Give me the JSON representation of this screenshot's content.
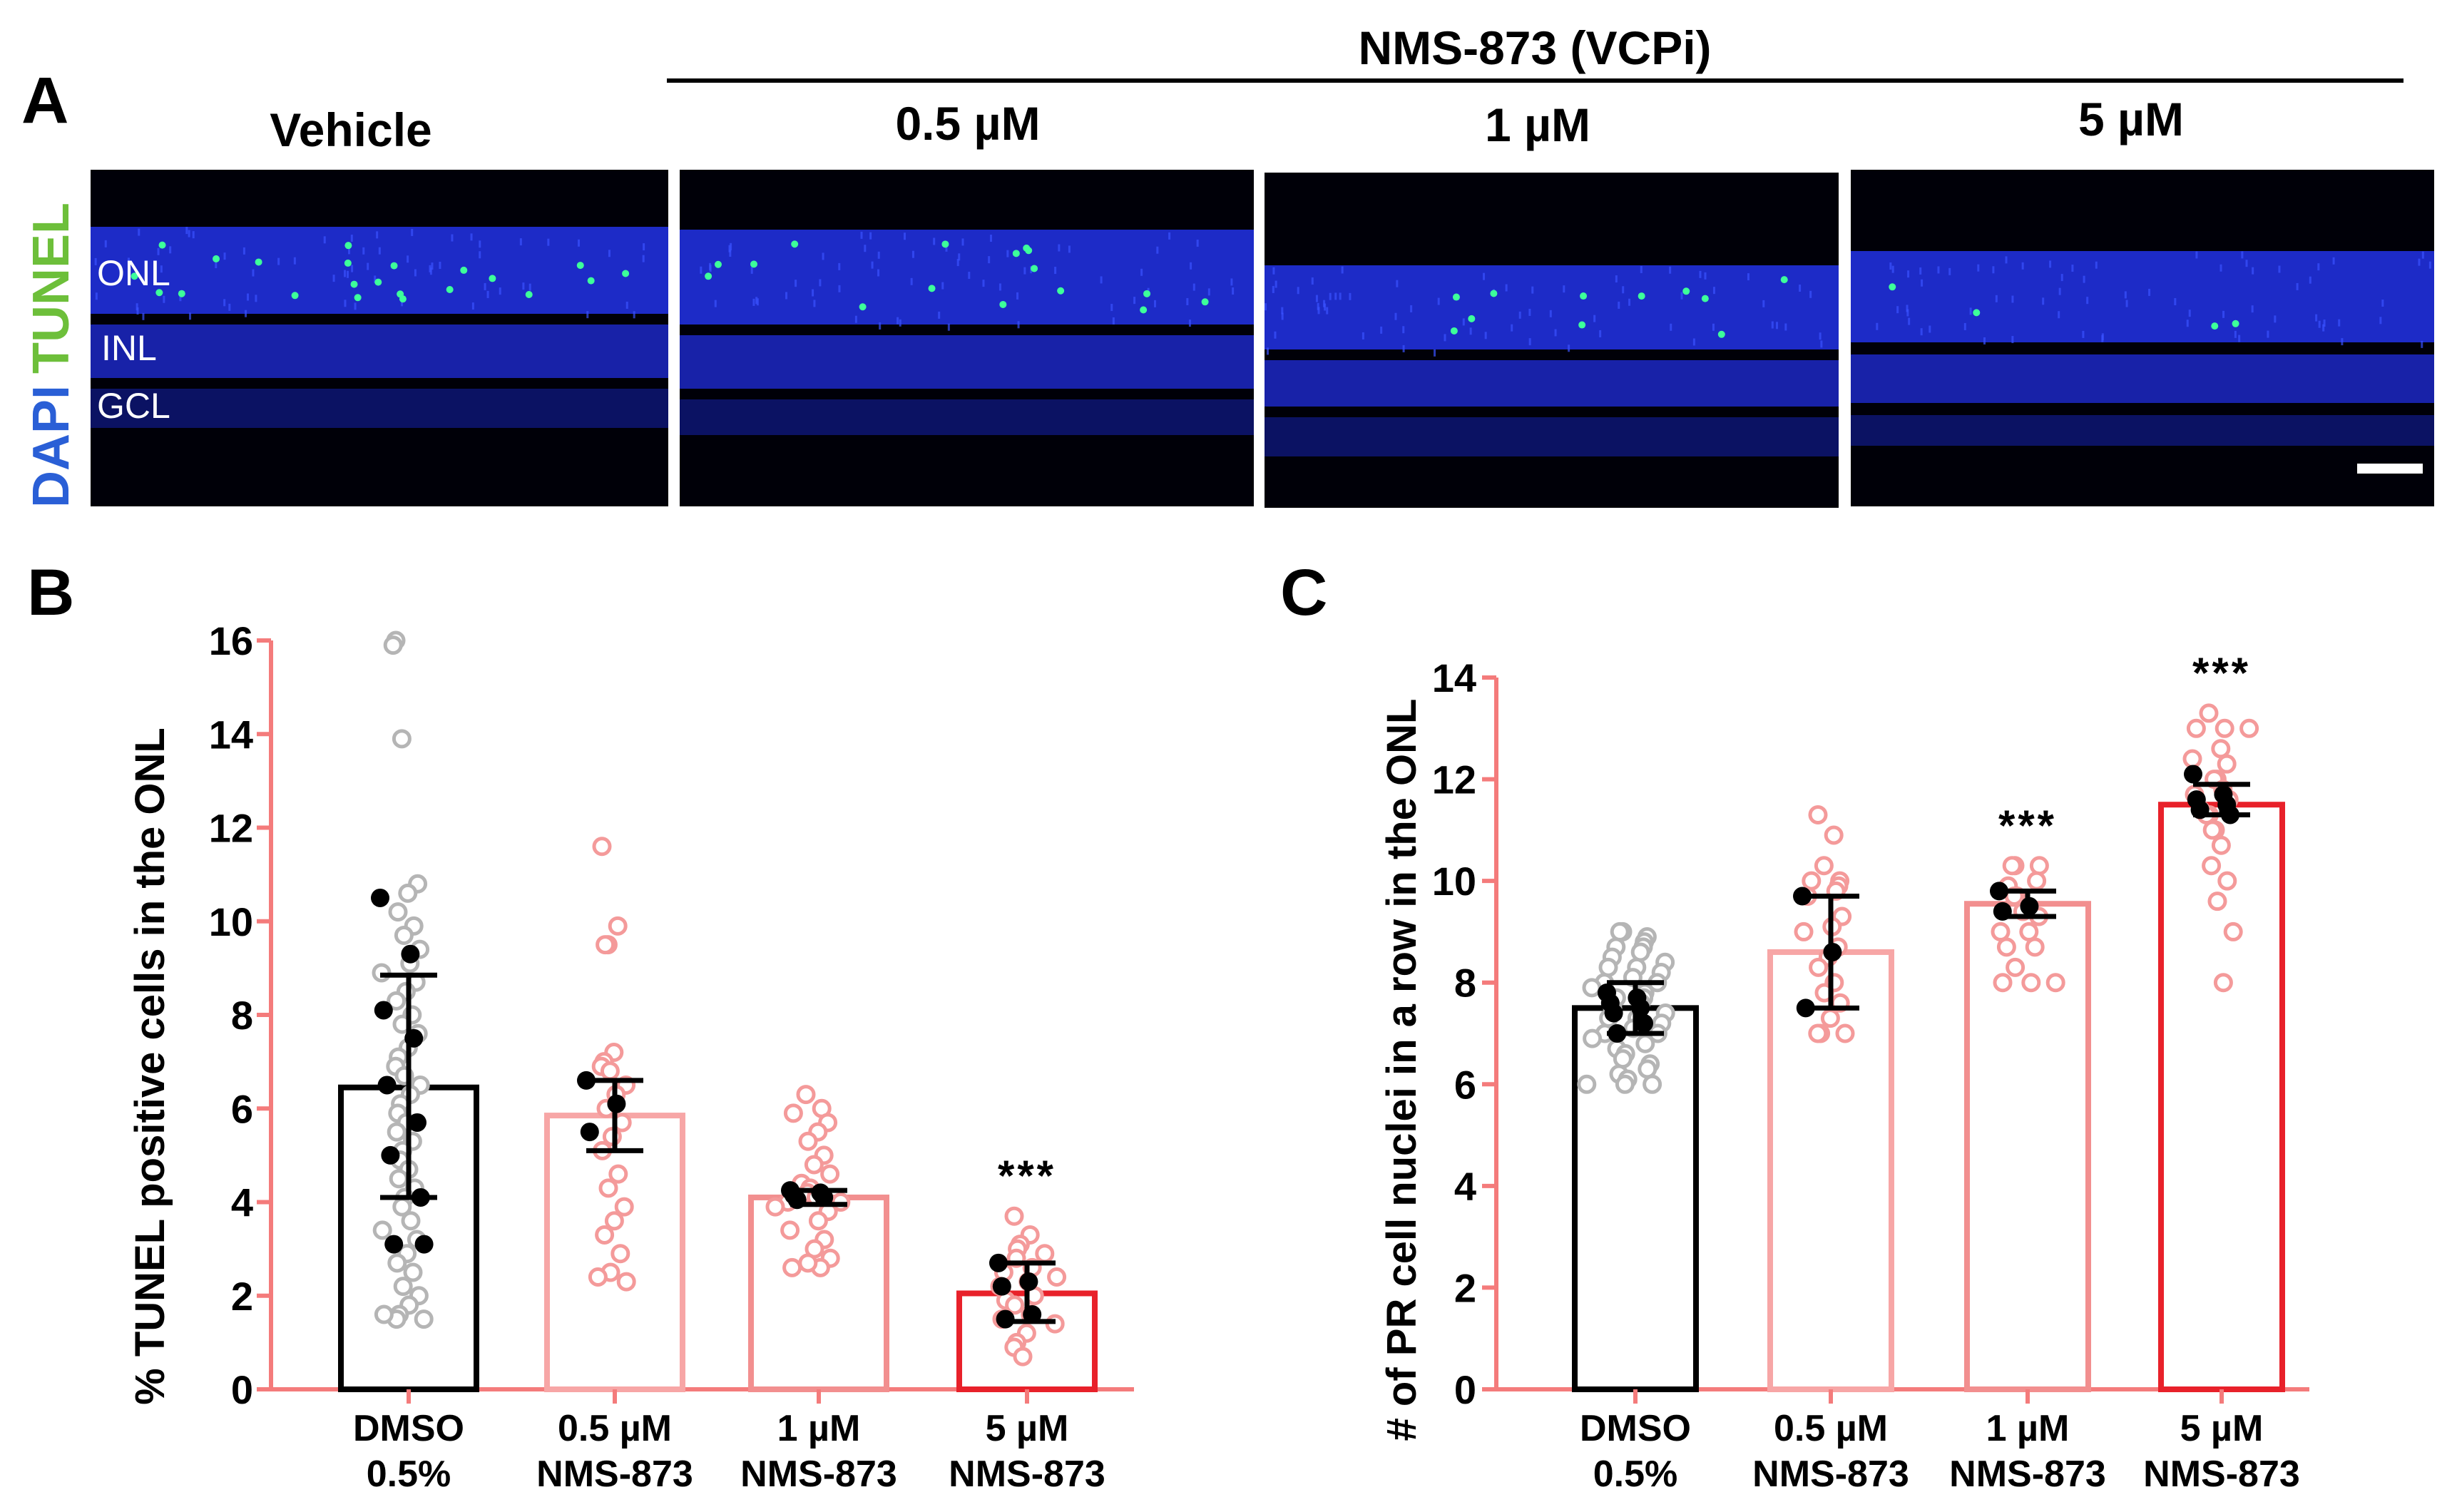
{
  "panel_a": {
    "letter": "A",
    "treatment_header": "NMS-873 (VCPi)",
    "column_labels": [
      "Vehicle",
      "0.5 µM",
      "1 µM",
      "5 µM"
    ],
    "stain_labels": [
      "DAPI",
      "TUNEL"
    ],
    "stain_colors": [
      "#2a5fd6",
      "#6dbf3a"
    ],
    "layer_labels": [
      "ONL",
      "INL",
      "GCL"
    ]
  },
  "chart_data": [
    {
      "id": "B",
      "type": "bar",
      "letter": "B",
      "title": "",
      "xlabel": "",
      "ylabel": "% TUNEL positive cells in the ONL",
      "ylim": [
        0,
        16
      ],
      "yticks": [
        0,
        2,
        4,
        6,
        8,
        10,
        12,
        14,
        16
      ],
      "categories": [
        [
          "DMSO",
          "0.5%"
        ],
        [
          "0.5 µM",
          "NMS-873"
        ],
        [
          "1 µM",
          "NMS-873"
        ],
        [
          "5 µM",
          "NMS-873"
        ]
      ],
      "values": [
        6.45,
        5.85,
        4.1,
        2.05
      ],
      "error_low": [
        4.1,
        5.1,
        3.95,
        1.45
      ],
      "error_high": [
        8.85,
        6.6,
        4.25,
        2.7
      ],
      "significance": [
        "",
        "",
        "",
        "***"
      ],
      "colors": [
        "#000000",
        "#f7a6a6",
        "#f28f8f",
        "#e8212a"
      ],
      "points_open": [
        [
          16.0,
          15.9,
          13.9,
          10.8,
          10.6,
          10.2,
          9.9,
          9.7,
          9.4,
          9.1,
          8.9,
          8.7,
          8.5,
          8.3,
          8.0,
          7.8,
          7.6,
          7.3,
          7.1,
          6.9,
          6.7,
          6.5,
          6.3,
          6.1,
          5.9,
          5.7,
          5.5,
          5.3,
          5.1,
          4.9,
          4.7,
          4.5,
          4.3,
          4.1,
          3.9,
          3.6,
          3.4,
          3.2,
          2.9,
          2.7,
          2.5,
          2.2,
          2.0,
          1.8,
          1.6,
          1.5,
          1.5,
          1.6
        ],
        [
          11.6,
          9.9,
          9.5,
          9.5,
          7.2,
          7.0,
          6.9,
          6.8,
          6.5,
          6.3,
          6.0,
          5.7,
          5.4,
          5.1,
          4.6,
          4.3,
          3.9,
          3.6,
          3.3,
          2.9,
          2.5,
          2.3,
          2.4
        ],
        [
          6.3,
          6.0,
          5.9,
          5.7,
          5.5,
          5.3,
          5.0,
          4.8,
          4.6,
          4.4,
          4.3,
          4.2,
          4.1,
          4.0,
          4.0,
          3.9,
          3.8,
          3.6,
          3.4,
          3.2,
          3.0,
          2.8,
          2.6,
          2.6,
          2.7
        ],
        [
          3.7,
          3.3,
          3.1,
          3.0,
          2.9,
          2.8,
          2.6,
          2.5,
          2.4,
          2.3,
          2.2,
          2.0,
          1.9,
          1.8,
          1.6,
          1.5,
          1.4,
          1.2,
          1.0,
          0.9,
          0.7
        ]
      ],
      "points_filled": [
        [
          10.5,
          9.3,
          8.1,
          7.5,
          6.5,
          5.7,
          5.0,
          4.1,
          3.1,
          3.1
        ],
        [
          6.6,
          6.1,
          5.5
        ],
        [
          4.25,
          4.2,
          4.15,
          4.1,
          4.05
        ],
        [
          2.7,
          2.3,
          2.2,
          1.6,
          1.5
        ]
      ]
    },
    {
      "id": "C",
      "type": "bar",
      "letter": "C",
      "title": "",
      "xlabel": "",
      "ylabel": "# of PR cell nuclei in a row in the ONL",
      "ylim": [
        0,
        14
      ],
      "yticks": [
        0,
        2,
        4,
        6,
        8,
        10,
        12,
        14
      ],
      "categories": [
        [
          "DMSO",
          "0.5%"
        ],
        [
          "0.5 µM",
          "NMS-873"
        ],
        [
          "1 µM",
          "NMS-873"
        ],
        [
          "5 µM",
          "NMS-873"
        ]
      ],
      "values": [
        7.5,
        8.6,
        9.55,
        11.5
      ],
      "error_low": [
        7.0,
        7.5,
        9.3,
        11.3
      ],
      "error_high": [
        8.0,
        9.7,
        9.8,
        11.9
      ],
      "significance": [
        "",
        "",
        "***",
        "***"
      ],
      "colors": [
        "#000000",
        "#f7a6a6",
        "#f28f8f",
        "#e8212a"
      ],
      "points_open": [
        [
          9.0,
          9.0,
          8.9,
          8.8,
          8.7,
          8.7,
          8.6,
          8.5,
          8.4,
          8.3,
          8.3,
          8.2,
          8.1,
          8.0,
          8.0,
          7.9,
          7.8,
          7.7,
          7.7,
          7.6,
          7.5,
          7.4,
          7.3,
          7.3,
          7.2,
          7.1,
          7.0,
          7.0,
          6.9,
          6.8,
          6.7,
          6.6,
          6.5,
          6.4,
          6.3,
          6.2,
          6.1,
          6.0,
          6.0,
          6.0
        ],
        [
          11.3,
          10.9,
          10.3,
          10.0,
          10.0,
          9.9,
          9.8,
          9.7,
          9.3,
          9.1,
          9.0,
          8.7,
          8.5,
          8.3,
          8.0,
          7.8,
          7.6,
          7.3,
          7.0,
          7.0,
          7.0
        ],
        [
          10.3,
          10.3,
          10.3,
          10.0,
          9.9,
          9.7,
          9.7,
          9.4,
          9.3,
          9.0,
          9.0,
          8.7,
          8.7,
          8.3,
          8.0,
          8.0,
          8.0
        ],
        [
          13.3,
          13.0,
          13.0,
          13.0,
          12.6,
          12.4,
          12.3,
          12.0,
          12.0,
          11.8,
          11.7,
          11.6,
          11.4,
          11.3,
          11.3,
          11.0,
          11.0,
          10.7,
          10.3,
          10.0,
          9.6,
          9.0,
          8.0
        ]
      ],
      "points_filled": [
        [
          7.8,
          7.7,
          7.6,
          7.5,
          7.4,
          7.2,
          7.0
        ],
        [
          9.7,
          8.6,
          7.5
        ],
        [
          9.8,
          9.5,
          9.4
        ],
        [
          12.1,
          11.7,
          11.6,
          11.5,
          11.4,
          11.3
        ]
      ]
    }
  ]
}
